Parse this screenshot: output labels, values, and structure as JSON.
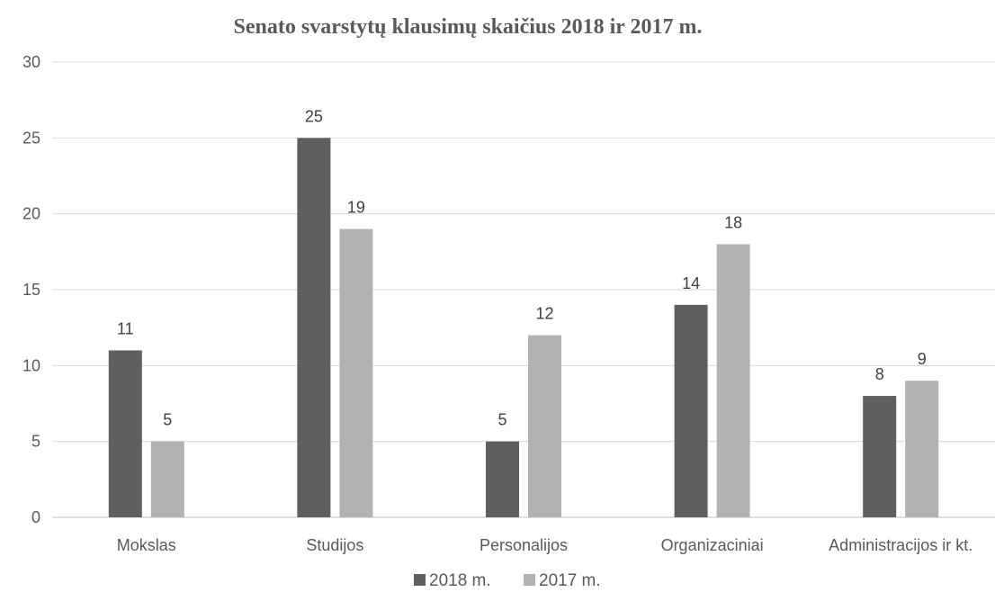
{
  "chart_data": {
    "type": "bar",
    "title": "Senato svarstytų klausimų skaičius 2018 ir 2017  m.",
    "categories": [
      "Mokslas",
      "Studijos",
      "Personalijos",
      "Organizaciniai",
      "Administracijos ir kt."
    ],
    "series": [
      {
        "name": "2018 m.",
        "values": [
          11,
          25,
          5,
          14,
          8
        ],
        "color": "#5f5f5f"
      },
      {
        "name": "2017 m.",
        "values": [
          5,
          19,
          12,
          18,
          9
        ],
        "color": "#b2b2b2"
      }
    ],
    "ylim": [
      0,
      30
    ],
    "yticks": [
      0,
      5,
      10,
      15,
      20,
      25,
      30
    ],
    "grid": true,
    "legend": "bottom",
    "data_labels": true
  }
}
